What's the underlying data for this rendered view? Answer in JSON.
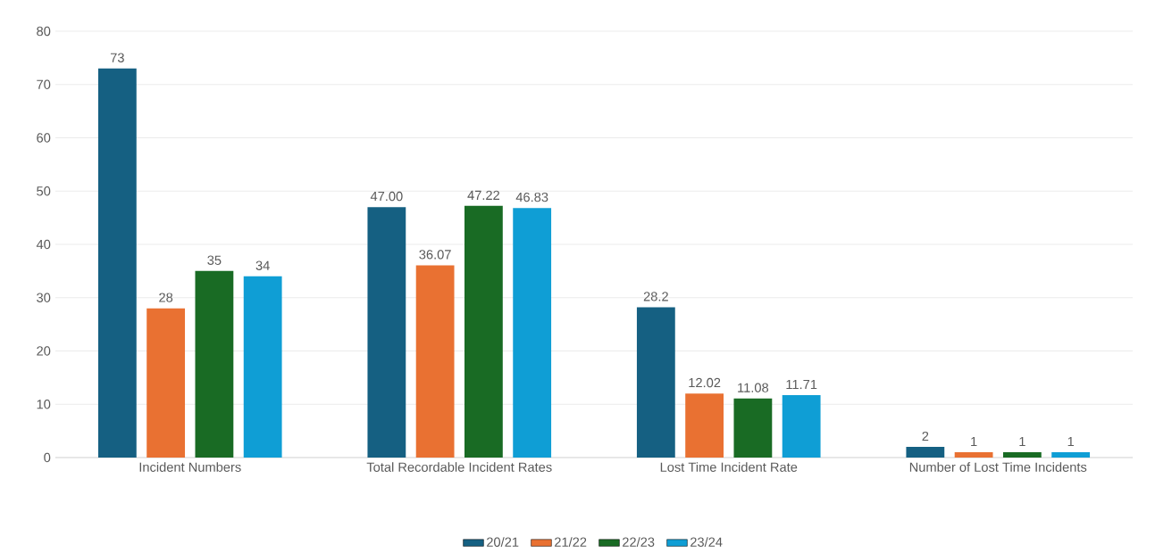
{
  "chart_data": {
    "type": "bar",
    "categories": [
      "Incident Numbers",
      "Total Recordable Incident Rates",
      "Lost Time Incident Rate",
      "Number of Lost Time Incidents"
    ],
    "series": [
      {
        "name": "20/21",
        "color": "#156082",
        "values": [
          73,
          47.0,
          28.2,
          2
        ],
        "value_labels": [
          "73",
          "47.00",
          "28.2",
          "2"
        ]
      },
      {
        "name": "21/22",
        "color": "#e97132",
        "values": [
          28,
          36.07,
          12.02,
          1
        ],
        "value_labels": [
          "28",
          "36.07",
          "12.02",
          "1"
        ]
      },
      {
        "name": "22/23",
        "color": "#196b24",
        "values": [
          35,
          47.22,
          11.08,
          1
        ],
        "value_labels": [
          "35",
          "47.22",
          "11.08",
          "1"
        ]
      },
      {
        "name": "23/24",
        "color": "#0f9ed5",
        "values": [
          34,
          46.83,
          11.71,
          1
        ],
        "value_labels": [
          "34",
          "46.83",
          "11.71",
          "1"
        ]
      }
    ],
    "ylim": [
      0,
      80
    ],
    "yticks": [
      0,
      10,
      20,
      30,
      40,
      50,
      60,
      70,
      80
    ],
    "grid": "y",
    "legend": "bottom"
  }
}
